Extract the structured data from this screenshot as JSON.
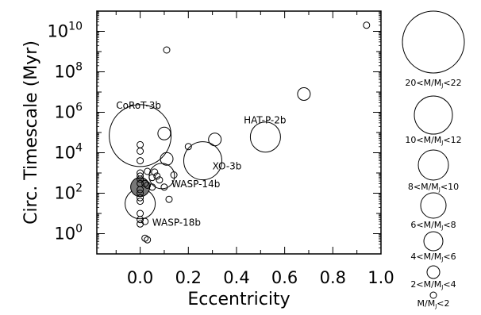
{
  "chart_data": {
    "type": "scatter",
    "xlabel": "Eccentricity",
    "ylabel": "Circ. Timescale (Myr)",
    "xlim": [
      -0.18,
      1.0
    ],
    "ylim_log10": [
      -1.0,
      11.0
    ],
    "yscale": "log",
    "x_ticks": [
      "0.0",
      "0.2",
      "0.4",
      "0.6",
      "0.8",
      "1.0"
    ],
    "x_tick_values": [
      0.0,
      0.2,
      0.4,
      0.6,
      0.8,
      1.0
    ],
    "y_tick_exponents": [
      0,
      2,
      4,
      6,
      8,
      10
    ],
    "y_tick_base": "10",
    "size_meaning": "planet mass bin (larger circle = more massive)",
    "points": [
      {
        "x": 0.94,
        "y": 20000000000.0,
        "mass_bin": 1
      },
      {
        "x": 0.11,
        "y": 1200000000.0,
        "mass_bin": 1
      },
      {
        "x": 0.68,
        "y": 8000000.0,
        "mass_bin": 2
      },
      {
        "x": 0.52,
        "y": 60000.0,
        "mass_bin": 5,
        "label": "HAT-P-2b"
      },
      {
        "x": 0.31,
        "y": 45000.0,
        "mass_bin": 2
      },
      {
        "x": 0.2,
        "y": 20000.0,
        "mass_bin": 1
      },
      {
        "x": 0.1,
        "y": 90000.0,
        "mass_bin": 2
      },
      {
        "x": 0.11,
        "y": 5000.0,
        "mass_bin": 2
      },
      {
        "x": 0.0,
        "y": 70000.0,
        "mass_bin": 8,
        "label": "CoRoT-3b"
      },
      {
        "x": 0.26,
        "y": 4000.0,
        "mass_bin": 6,
        "label": "XO-3b"
      },
      {
        "x": 0.09,
        "y": 700.0,
        "mass_bin": 4
      },
      {
        "x": 0.0,
        "y": 200.0,
        "mass_bin": 3,
        "filled": true,
        "label": "WASP-14b"
      },
      {
        "x": 0.0,
        "y": 30.0,
        "mass_bin": 5,
        "label": "WASP-18b"
      },
      {
        "x": 0.0,
        "y": 25000.0,
        "mass_bin": 1
      },
      {
        "x": 0.0,
        "y": 12000.0,
        "mass_bin": 1
      },
      {
        "x": 0.0,
        "y": 4000.0,
        "mass_bin": 1
      },
      {
        "x": 0.0,
        "y": 1000.0,
        "mass_bin": 1
      },
      {
        "x": 0.0,
        "y": 700.0,
        "mass_bin": 1
      },
      {
        "x": 0.0,
        "y": 500.0,
        "mass_bin": 1
      },
      {
        "x": 0.0,
        "y": 300.0,
        "mass_bin": 1
      },
      {
        "x": 0.0,
        "y": 150.0,
        "mass_bin": 1
      },
      {
        "x": 0.0,
        "y": 100.0,
        "mass_bin": 1
      },
      {
        "x": 0.0,
        "y": 60.0,
        "mass_bin": 1
      },
      {
        "x": 0.0,
        "y": 40.0,
        "mass_bin": 1
      },
      {
        "x": 0.0,
        "y": 10.0,
        "mass_bin": 1
      },
      {
        "x": 0.0,
        "y": 5.0,
        "mass_bin": 1
      },
      {
        "x": 0.0,
        "y": 3.0,
        "mass_bin": 1
      },
      {
        "x": 0.02,
        "y": 300.0,
        "mass_bin": 1
      },
      {
        "x": 0.03,
        "y": 1200.0,
        "mass_bin": 1
      },
      {
        "x": 0.03,
        "y": 250.0,
        "mass_bin": 1
      },
      {
        "x": 0.05,
        "y": 600.0,
        "mass_bin": 1
      },
      {
        "x": 0.06,
        "y": 1100.0,
        "mass_bin": 1
      },
      {
        "x": 0.07,
        "y": 700.0,
        "mass_bin": 1
      },
      {
        "x": 0.05,
        "y": 200.0,
        "mass_bin": 1
      },
      {
        "x": 0.08,
        "y": 450.0,
        "mass_bin": 1
      },
      {
        "x": 0.1,
        "y": 200.0,
        "mass_bin": 1
      },
      {
        "x": 0.12,
        "y": 50.0,
        "mass_bin": 1
      },
      {
        "x": 0.14,
        "y": 800.0,
        "mass_bin": 1
      },
      {
        "x": 0.02,
        "y": 4.0,
        "mass_bin": 1
      },
      {
        "x": 0.02,
        "y": 0.6,
        "mass_bin": 1
      },
      {
        "x": 0.03,
        "y": 0.5,
        "mass_bin": 1
      }
    ],
    "labels": [
      {
        "text": "CoRoT-3b",
        "x": -0.1,
        "y": 1500000.0
      },
      {
        "text": "HAT-P-2b",
        "x": 0.43,
        "y": 280000.0
      },
      {
        "text": "XO-3b",
        "x": 0.3,
        "y": 1500.0
      },
      {
        "text": "WASP-14b",
        "x": 0.13,
        "y": 200.0
      },
      {
        "text": "WASP-18b",
        "x": 0.05,
        "y": 2.5
      }
    ],
    "legend": {
      "placement": "right, outside plot, stacked vertically",
      "entries": [
        {
          "mass_bin": 8,
          "label_pre": "20<M/M",
          "sub": "J",
          "label_post": "<22"
        },
        {
          "mass_bin": 6,
          "label_pre": "10<M/M",
          "sub": "J",
          "label_post": "<12"
        },
        {
          "mass_bin": 5,
          "label_pre": "8<M/M",
          "sub": "J",
          "label_post": "<10"
        },
        {
          "mass_bin": 4,
          "label_pre": "6<M/M",
          "sub": "J",
          "label_post": "<8"
        },
        {
          "mass_bin": 3,
          "label_pre": "4<M/M",
          "sub": "J",
          "label_post": "<6"
        },
        {
          "mass_bin": 2,
          "label_pre": "2<M/M",
          "sub": "J",
          "label_post": "<4"
        },
        {
          "mass_bin": 1,
          "label_pre": "M/M",
          "sub": "J",
          "label_post": "<2"
        }
      ]
    },
    "grid": false,
    "colors": {
      "axis": "#000000",
      "marker_edge": "#000000",
      "filled_marker": "#777777"
    }
  }
}
